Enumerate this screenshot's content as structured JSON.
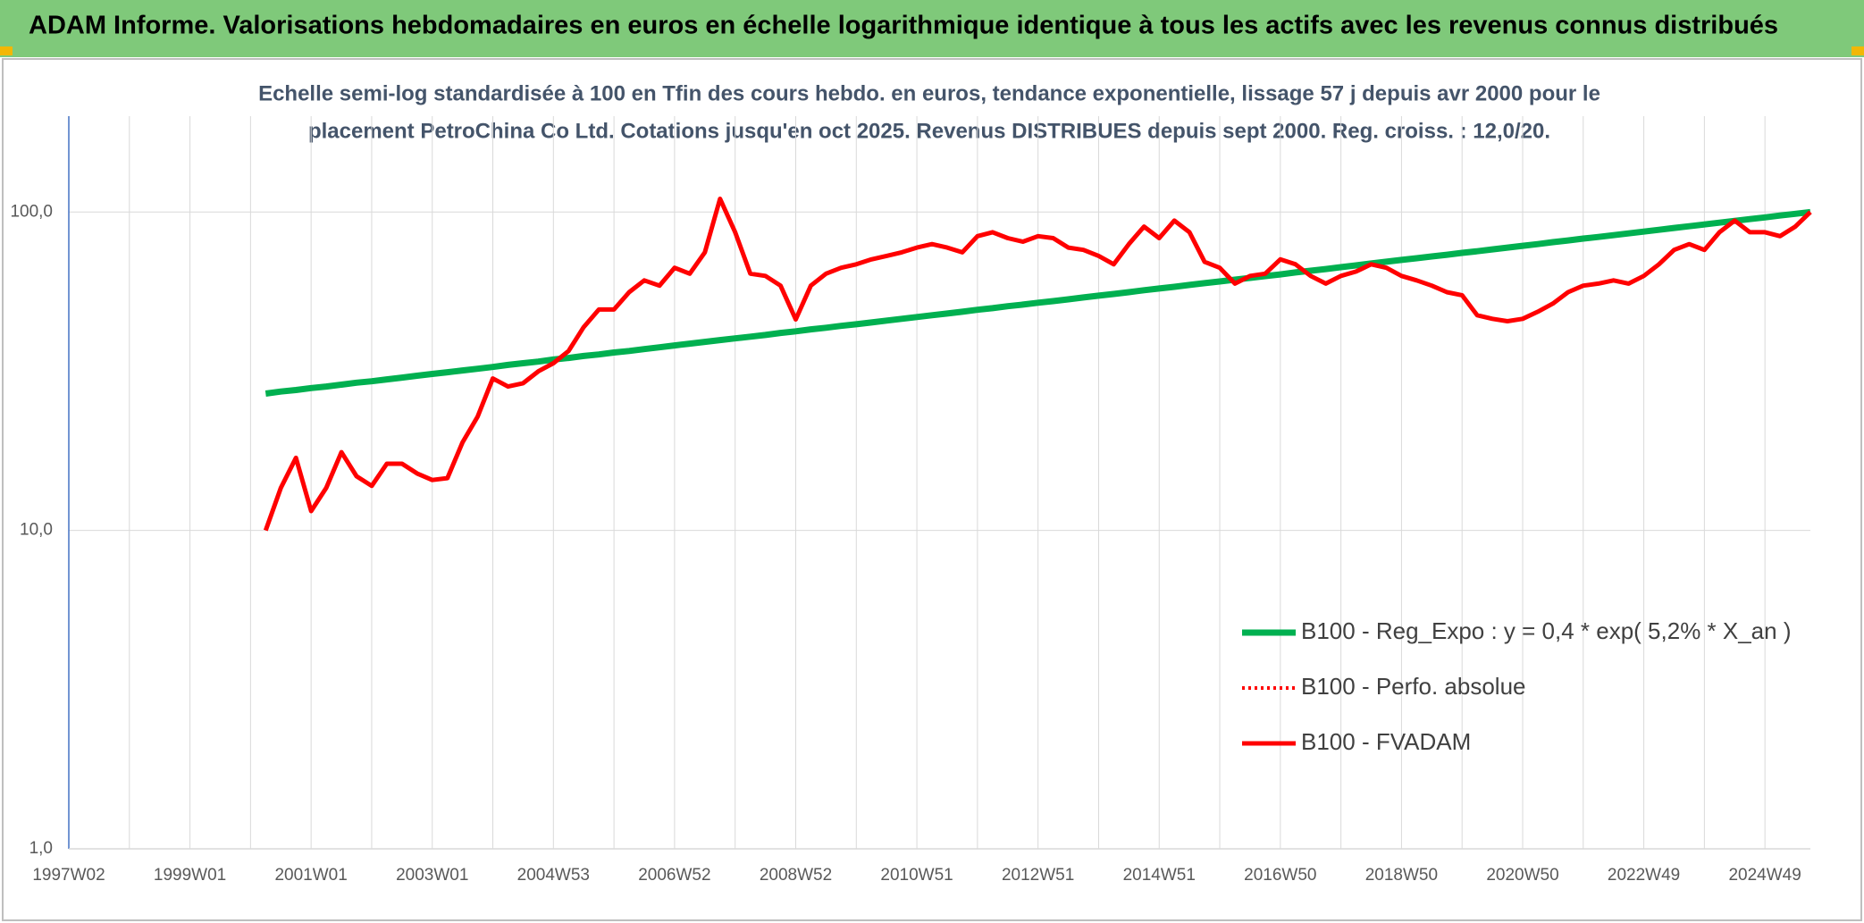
{
  "header": {
    "title": "ADAM Informe. Valorisations hebdomadaires en euros en échelle logarithmique identique à tous les actifs avec les revenus connus distribués"
  },
  "chart_data": {
    "type": "line",
    "subtitle": [
      "Echelle semi-log standardisée à 100 en Tfin des cours hebdo. en euros, tendance exponentielle, lissage 57 j depuis avr 2000 pour le",
      "placement PetroChina Co Ltd. Cotations jusqu'en oct 2025. Revenus DISTRIBUES depuis sept 2000. Reg. croiss. : 12,0/20."
    ],
    "log_y": true,
    "grid": true,
    "legend": "lower-right",
    "ylim": [
      1,
      200
    ],
    "yticks": [
      {
        "value": 1,
        "label": "1,0"
      },
      {
        "value": 10,
        "label": "10,0"
      },
      {
        "value": 100,
        "label": "100,0"
      }
    ],
    "categories": [
      "1997W02",
      null,
      null,
      null,
      null,
      null,
      null,
      null,
      "1999W01",
      null,
      null,
      null,
      null,
      null,
      null,
      null,
      "2001W01",
      null,
      null,
      null,
      null,
      null,
      null,
      null,
      "2003W01",
      null,
      null,
      null,
      null,
      null,
      null,
      null,
      "2004W53",
      null,
      null,
      null,
      null,
      null,
      null,
      null,
      "2006W52",
      null,
      null,
      null,
      null,
      null,
      null,
      null,
      "2008W52",
      null,
      null,
      null,
      null,
      null,
      null,
      null,
      "2010W51",
      null,
      null,
      null,
      null,
      null,
      null,
      null,
      "2012W51",
      null,
      null,
      null,
      null,
      null,
      null,
      null,
      "2014W51",
      null,
      null,
      null,
      null,
      null,
      null,
      null,
      "2016W50",
      null,
      null,
      null,
      null,
      null,
      null,
      null,
      "2018W50",
      null,
      null,
      null,
      null,
      null,
      null,
      null,
      "2020W50",
      null,
      null,
      null,
      null,
      null,
      null,
      null,
      "2022W49",
      null,
      null,
      null,
      null,
      null,
      null,
      null,
      "2024W49",
      null,
      null,
      null
    ],
    "series": [
      {
        "name": "B100 - Reg_Expo : y = 0,4 * exp( 5,2% *  X_an )",
        "color": "#00b050",
        "style": "solid",
        "values": [
          null,
          null,
          null,
          null,
          null,
          null,
          null,
          null,
          null,
          null,
          null,
          null,
          null,
          26.9,
          27.3,
          27.6,
          28.0,
          28.3,
          28.7,
          29.1,
          29.4,
          29.8,
          30.2,
          30.6,
          31.0,
          31.4,
          31.8,
          32.2,
          32.6,
          33.1,
          33.5,
          33.9,
          34.4,
          34.8,
          35.3,
          35.7,
          36.2,
          36.6,
          37.1,
          37.6,
          38.1,
          38.6,
          39.1,
          39.6,
          40.1,
          40.6,
          41.1,
          41.7,
          42.2,
          42.8,
          43.3,
          43.9,
          44.4,
          45.0,
          45.6,
          46.2,
          46.8,
          47.4,
          48.0,
          48.6,
          49.3,
          49.9,
          50.6,
          51.2,
          51.9,
          52.5,
          53.2,
          53.9,
          54.6,
          55.3,
          56.0,
          56.8,
          57.5,
          58.2,
          59.0,
          59.8,
          60.5,
          61.3,
          62.1,
          62.9,
          63.7,
          64.6,
          65.4,
          66.2,
          67.1,
          68.0,
          68.9,
          69.8,
          70.7,
          71.6,
          72.5,
          73.4,
          74.4,
          75.3,
          76.3,
          77.3,
          78.3,
          79.3,
          80.4,
          81.4,
          82.5,
          83.5,
          84.6,
          85.7,
          86.8,
          87.9,
          89.1,
          90.2,
          91.4,
          92.6,
          93.8,
          95.0,
          96.2,
          97.5,
          98.7,
          100.0
        ]
      },
      {
        "name": "B100 - Perfo. absolue",
        "color": "#ff0000",
        "style": "dotted",
        "values": [
          null,
          null,
          null,
          null,
          null,
          null,
          null,
          null,
          null,
          null,
          null,
          null,
          null,
          null,
          null,
          null,
          null,
          null,
          null,
          null,
          null,
          null,
          null,
          null,
          null,
          null,
          null,
          null,
          null,
          null,
          null,
          null,
          null,
          null,
          null,
          null,
          null,
          null,
          null,
          null,
          null,
          null,
          null,
          null,
          null,
          null,
          null,
          null,
          null,
          null,
          null,
          null,
          null,
          null,
          null,
          null,
          null,
          null,
          null,
          null,
          null,
          null,
          null,
          null,
          null,
          null,
          null,
          null,
          null,
          null,
          null,
          null,
          null,
          null,
          null,
          null,
          null,
          null,
          null,
          null,
          null,
          null,
          null,
          null,
          null,
          null,
          null,
          null,
          null,
          null,
          null,
          null,
          null,
          null,
          null,
          null,
          null,
          null,
          null,
          null,
          null,
          null,
          null,
          null,
          null,
          null,
          null,
          null,
          null,
          null,
          null,
          null,
          null,
          null,
          null,
          null
        ]
      },
      {
        "name": "B100 - FVADAM",
        "color": "#ff0000",
        "style": "solid",
        "values": [
          null,
          null,
          null,
          null,
          null,
          null,
          null,
          null,
          null,
          null,
          null,
          null,
          null,
          10,
          13.6,
          16.9,
          11.5,
          13.6,
          17.6,
          14.8,
          13.8,
          16.2,
          16.2,
          15.1,
          14.4,
          14.6,
          18.9,
          22.8,
          30,
          28.3,
          29,
          31.6,
          33.5,
          36.6,
          43.5,
          49.4,
          49.4,
          56,
          61,
          58.7,
          66.8,
          64,
          74.7,
          110,
          86.4,
          64,
          63,
          58.7,
          46,
          58.7,
          64,
          66.8,
          68.5,
          71,
          72.8,
          74.7,
          77.3,
          79.3,
          77.3,
          74.7,
          84,
          86.4,
          82.8,
          80.7,
          84,
          82.8,
          77.3,
          76,
          72.8,
          68.5,
          79.3,
          90,
          82.8,
          94,
          86.4,
          69.7,
          66.8,
          59.6,
          63,
          64,
          71,
          68.5,
          63,
          59.6,
          63,
          65,
          68.5,
          66.8,
          63,
          61,
          58.7,
          56,
          54.8,
          47.4,
          46.2,
          45.4,
          46.2,
          48.6,
          51.6,
          56,
          58.7,
          59.6,
          61,
          59.6,
          63,
          68.5,
          76,
          79.3,
          76,
          86.4,
          94,
          86.4,
          86.4,
          84,
          90,
          100
        ]
      }
    ]
  }
}
